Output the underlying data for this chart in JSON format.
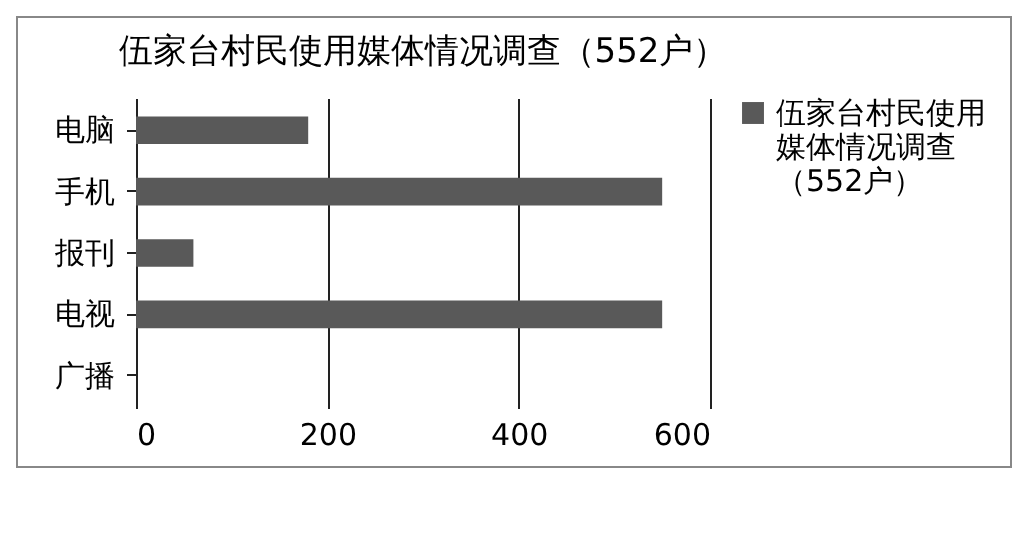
{
  "chart_data": {
    "type": "bar",
    "orientation": "horizontal",
    "title": "伍家台村民使用媒体情况调查（552户）",
    "categories": [
      "电脑",
      "手机",
      "报刊",
      "电视",
      "广播"
    ],
    "series": [
      {
        "name": "伍家台村民使用媒体情况调查（552户）",
        "color": "#595959",
        "values": [
          180,
          550,
          60,
          550,
          0
        ]
      }
    ],
    "xlim": [
      0,
      600
    ],
    "xticks": [
      0,
      200,
      400,
      600
    ],
    "grid": "x",
    "legend": "right"
  }
}
